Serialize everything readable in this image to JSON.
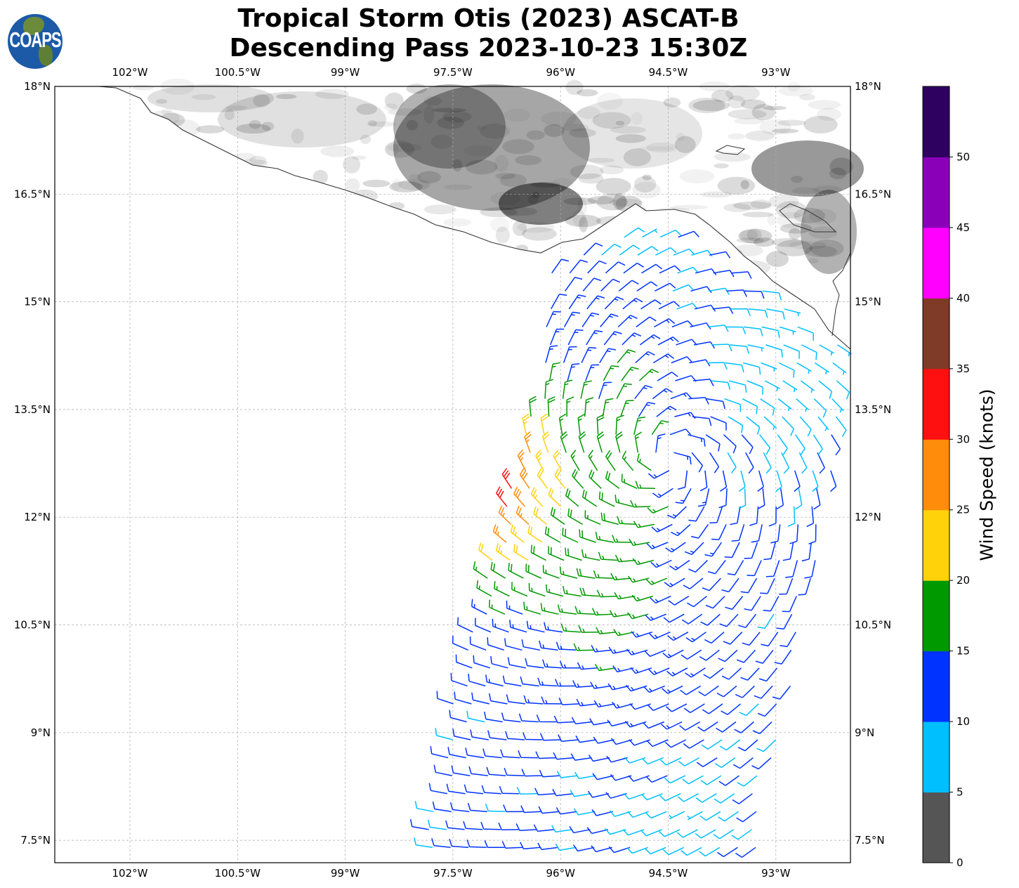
{
  "title": {
    "line1": "Tropical Storm Otis (2023) ASCAT-B",
    "line2": "Descending Pass 2023-10-23 15:30Z"
  },
  "logo": {
    "text": "COAPS"
  },
  "map": {
    "lon_ticks": [
      {
        "value": -102,
        "label": "102°W"
      },
      {
        "value": -100.5,
        "label": "100.5°W"
      },
      {
        "value": -99,
        "label": "99°W"
      },
      {
        "value": -97.5,
        "label": "97.5°W"
      },
      {
        "value": -96,
        "label": "96°W"
      },
      {
        "value": -94.5,
        "label": "94.5°W"
      },
      {
        "value": -93,
        "label": "93°W"
      }
    ],
    "lat_ticks": [
      {
        "value": 18,
        "label": "18°N"
      },
      {
        "value": 16.5,
        "label": "16.5°N"
      },
      {
        "value": 15,
        "label": "15°N"
      },
      {
        "value": 13.5,
        "label": "13.5°N"
      },
      {
        "value": 12,
        "label": "12°N"
      },
      {
        "value": 10.5,
        "label": "10.5°N"
      },
      {
        "value": 9,
        "label": "9°N"
      },
      {
        "value": 7.5,
        "label": "7.5°N"
      }
    ],
    "extent": {
      "lon_min": -103.05,
      "lon_max": -91.96,
      "lat_min": 7.19,
      "lat_max": 18
    }
  },
  "wind_field": {
    "center": {
      "lon": -94.5,
      "lat": 12.8
    },
    "max_wind_location": {
      "lon": -96.8,
      "lat": 12.4
    },
    "max_wind_knots": 31
  },
  "colorbar": {
    "label": "Wind Speed (knots)",
    "bins": [
      0,
      5,
      10,
      15,
      20,
      25,
      30,
      35,
      40,
      45,
      50,
      55
    ],
    "colors": [
      "#555555",
      "#00bfff",
      "#0033ff",
      "#009900",
      "#ffd20a",
      "#ff8c0a",
      "#ff1010",
      "#7f3a28",
      "#ff00ff",
      "#8a00b8",
      "#2e0060"
    ],
    "tick_labels": [
      "0",
      "5",
      "10",
      "15",
      "20",
      "25",
      "30",
      "35",
      "40",
      "45",
      "50"
    ]
  }
}
